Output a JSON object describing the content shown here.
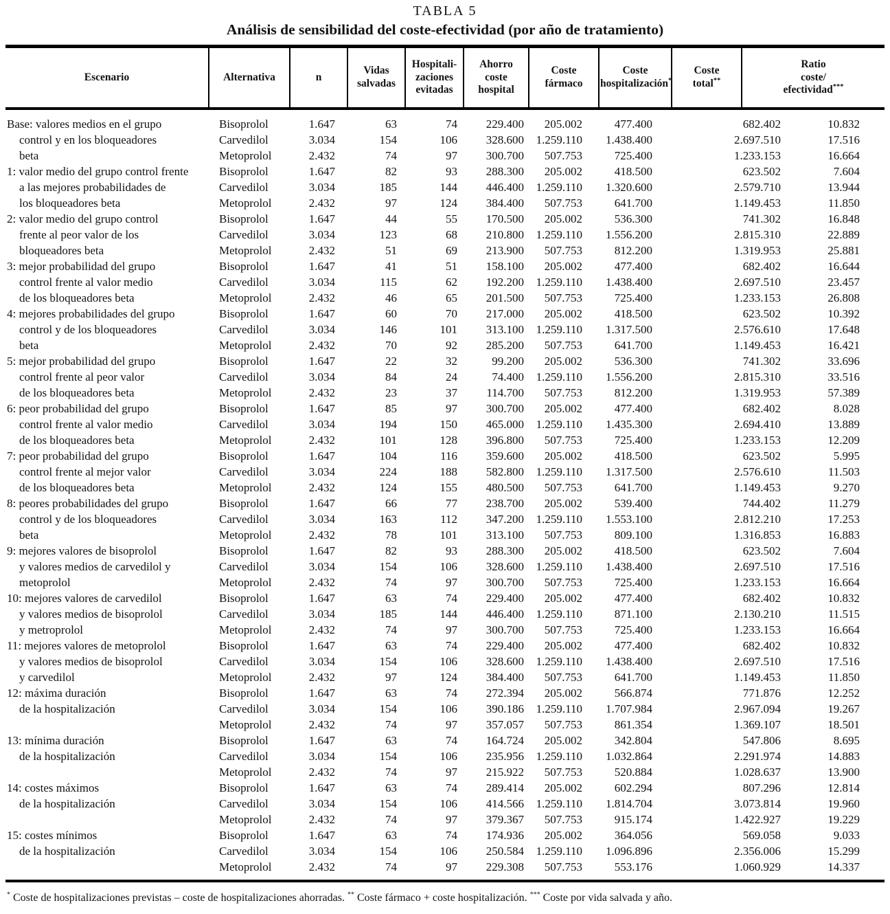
{
  "caption": "TABLA 5",
  "title": "Análisis de sensibilidad del coste-efectividad (por año de tratamiento)",
  "columns": [
    {
      "id": "escenario",
      "label": "Escenario",
      "sup": ""
    },
    {
      "id": "alternativa",
      "label": "Alternativa",
      "sup": ""
    },
    {
      "id": "n",
      "label": "n",
      "sup": ""
    },
    {
      "id": "vidas",
      "label": "Vidas\nsalvadas",
      "sup": ""
    },
    {
      "id": "hospitalizaciones",
      "label": "Hospitali-\nzaciones\nevitadas",
      "sup": ""
    },
    {
      "id": "ahorro",
      "label": "Ahorro\ncoste\nhospital",
      "sup": ""
    },
    {
      "id": "farmaco",
      "label": "Coste\nfármaco",
      "sup": ""
    },
    {
      "id": "coste_hospitalizacion",
      "label": "Coste\nhospitalización",
      "sup": "*"
    },
    {
      "id": "coste_total",
      "label": "Coste\ntotal",
      "sup": "**"
    },
    {
      "id": "ratio",
      "label": "Ratio\ncoste/\nefectividad",
      "sup": "***"
    }
  ],
  "scenarios": [
    {
      "lines": [
        "Base: valores medios en el grupo",
        "control y en los bloqueadores",
        "beta"
      ],
      "rows": [
        {
          "alternativa": "Bisoprolol",
          "n": "1.647",
          "vidas": "63",
          "hospitalizaciones": "74",
          "ahorro": "229.400",
          "farmaco": "205.002",
          "coste_hospitalizacion": "477.400",
          "coste_total": "682.402",
          "ratio": "10.832"
        },
        {
          "alternativa": "Carvedilol",
          "n": "3.034",
          "vidas": "154",
          "hospitalizaciones": "106",
          "ahorro": "328.600",
          "farmaco": "1.259.110",
          "coste_hospitalizacion": "1.438.400",
          "coste_total": "2.697.510",
          "ratio": "17.516"
        },
        {
          "alternativa": "Metoprolol",
          "n": "2.432",
          "vidas": "74",
          "hospitalizaciones": "97",
          "ahorro": "300.700",
          "farmaco": "507.753",
          "coste_hospitalizacion": "725.400",
          "coste_total": "1.233.153",
          "ratio": "16.664"
        }
      ]
    },
    {
      "lines": [
        "1: valor medio del grupo control frente",
        "a las mejores probabilidades de",
        "los bloqueadores beta"
      ],
      "rows": [
        {
          "alternativa": "Bisoprolol",
          "n": "1.647",
          "vidas": "82",
          "hospitalizaciones": "93",
          "ahorro": "288.300",
          "farmaco": "205.002",
          "coste_hospitalizacion": "418.500",
          "coste_total": "623.502",
          "ratio": "7.604"
        },
        {
          "alternativa": "Carvedilol",
          "n": "3.034",
          "vidas": "185",
          "hospitalizaciones": "144",
          "ahorro": "446.400",
          "farmaco": "1.259.110",
          "coste_hospitalizacion": "1.320.600",
          "coste_total": "2.579.710",
          "ratio": "13.944"
        },
        {
          "alternativa": "Metoprolol",
          "n": "2.432",
          "vidas": "97",
          "hospitalizaciones": "124",
          "ahorro": "384.400",
          "farmaco": "507.753",
          "coste_hospitalizacion": "641.700",
          "coste_total": "1.149.453",
          "ratio": "11.850"
        }
      ]
    },
    {
      "lines": [
        "2: valor medio del grupo control",
        "frente  al peor valor de los",
        "bloqueadores beta"
      ],
      "rows": [
        {
          "alternativa": "Bisoprolol",
          "n": "1.647",
          "vidas": "44",
          "hospitalizaciones": "55",
          "ahorro": "170.500",
          "farmaco": "205.002",
          "coste_hospitalizacion": "536.300",
          "coste_total": "741.302",
          "ratio": "16.848"
        },
        {
          "alternativa": "Carvedilol",
          "n": "3.034",
          "vidas": "123",
          "hospitalizaciones": "68",
          "ahorro": "210.800",
          "farmaco": "1.259.110",
          "coste_hospitalizacion": "1.556.200",
          "coste_total": "2.815.310",
          "ratio": "22.889"
        },
        {
          "alternativa": "Metoprolol",
          "n": "2.432",
          "vidas": "51",
          "hospitalizaciones": "69",
          "ahorro": "213.900",
          "farmaco": "507.753",
          "coste_hospitalizacion": "812.200",
          "coste_total": "1.319.953",
          "ratio": "25.881"
        }
      ]
    },
    {
      "lines": [
        "3: mejor probabilidad del grupo",
        "control frente al valor medio",
        "de los bloqueadores beta"
      ],
      "rows": [
        {
          "alternativa": "Bisoprolol",
          "n": "1.647",
          "vidas": "41",
          "hospitalizaciones": "51",
          "ahorro": "158.100",
          "farmaco": "205.002",
          "coste_hospitalizacion": "477.400",
          "coste_total": "682.402",
          "ratio": "16.644"
        },
        {
          "alternativa": "Carvedilol",
          "n": "3.034",
          "vidas": "115",
          "hospitalizaciones": "62",
          "ahorro": "192.200",
          "farmaco": "1.259.110",
          "coste_hospitalizacion": "1.438.400",
          "coste_total": "2.697.510",
          "ratio": "23.457"
        },
        {
          "alternativa": "Metoprolol",
          "n": "2.432",
          "vidas": "46",
          "hospitalizaciones": "65",
          "ahorro": "201.500",
          "farmaco": "507.753",
          "coste_hospitalizacion": "725.400",
          "coste_total": "1.233.153",
          "ratio": "26.808"
        }
      ]
    },
    {
      "lines": [
        "4: mejores probabilidades del grupo",
        "control y de los bloqueadores",
        "beta"
      ],
      "rows": [
        {
          "alternativa": "Bisoprolol",
          "n": "1.647",
          "vidas": "60",
          "hospitalizaciones": "70",
          "ahorro": "217.000",
          "farmaco": "205.002",
          "coste_hospitalizacion": "418.500",
          "coste_total": "623.502",
          "ratio": "10.392"
        },
        {
          "alternativa": "Carvedilol",
          "n": "3.034",
          "vidas": "146",
          "hospitalizaciones": "101",
          "ahorro": "313.100",
          "farmaco": "1.259.110",
          "coste_hospitalizacion": "1.317.500",
          "coste_total": "2.576.610",
          "ratio": "17.648"
        },
        {
          "alternativa": "Metoprolol",
          "n": "2.432",
          "vidas": "70",
          "hospitalizaciones": "92",
          "ahorro": "285.200",
          "farmaco": "507.753",
          "coste_hospitalizacion": "641.700",
          "coste_total": "1.149.453",
          "ratio": "16.421"
        }
      ]
    },
    {
      "lines": [
        "5: mejor probabilidad del grupo",
        "control frente al peor valor",
        "de los bloqueadores beta"
      ],
      "rows": [
        {
          "alternativa": "Bisoprolol",
          "n": "1.647",
          "vidas": "22",
          "hospitalizaciones": "32",
          "ahorro": "99.200",
          "farmaco": "205.002",
          "coste_hospitalizacion": "536.300",
          "coste_total": "741.302",
          "ratio": "33.696"
        },
        {
          "alternativa": "Carvedilol",
          "n": "3.034",
          "vidas": "84",
          "hospitalizaciones": "24",
          "ahorro": "74.400",
          "farmaco": "1.259.110",
          "coste_hospitalizacion": "1.556.200",
          "coste_total": "2.815.310",
          "ratio": "33.516"
        },
        {
          "alternativa": "Metoprolol",
          "n": "2.432",
          "vidas": "23",
          "hospitalizaciones": "37",
          "ahorro": "114.700",
          "farmaco": "507.753",
          "coste_hospitalizacion": "812.200",
          "coste_total": "1.319.953",
          "ratio": "57.389"
        }
      ]
    },
    {
      "lines": [
        "6: peor probabilidad del grupo",
        "control frente al valor medio",
        "de los bloqueadores beta"
      ],
      "rows": [
        {
          "alternativa": "Bisoprolol",
          "n": "1.647",
          "vidas": "85",
          "hospitalizaciones": "97",
          "ahorro": "300.700",
          "farmaco": "205.002",
          "coste_hospitalizacion": "477.400",
          "coste_total": "682.402",
          "ratio": "8.028"
        },
        {
          "alternativa": "Carvedilol",
          "n": "3.034",
          "vidas": "194",
          "hospitalizaciones": "150",
          "ahorro": "465.000",
          "farmaco": "1.259.110",
          "coste_hospitalizacion": "1.435.300",
          "coste_total": "2.694.410",
          "ratio": "13.889"
        },
        {
          "alternativa": "Metoprolol",
          "n": "2.432",
          "vidas": "101",
          "hospitalizaciones": "128",
          "ahorro": "396.800",
          "farmaco": "507.753",
          "coste_hospitalizacion": "725.400",
          "coste_total": "1.233.153",
          "ratio": "12.209"
        }
      ]
    },
    {
      "lines": [
        "7: peor probabilidad del grupo",
        "control frente al mejor valor",
        "de los bloqueadores beta"
      ],
      "rows": [
        {
          "alternativa": "Bisoprolol",
          "n": "1.647",
          "vidas": "104",
          "hospitalizaciones": "116",
          "ahorro": "359.600",
          "farmaco": "205.002",
          "coste_hospitalizacion": "418.500",
          "coste_total": "623.502",
          "ratio": "5.995"
        },
        {
          "alternativa": "Carvedilol",
          "n": "3.034",
          "vidas": "224",
          "hospitalizaciones": "188",
          "ahorro": "582.800",
          "farmaco": "1.259.110",
          "coste_hospitalizacion": "1.317.500",
          "coste_total": "2.576.610",
          "ratio": "11.503"
        },
        {
          "alternativa": "Metoprolol",
          "n": "2.432",
          "vidas": "124",
          "hospitalizaciones": "155",
          "ahorro": "480.500",
          "farmaco": "507.753",
          "coste_hospitalizacion": "641.700",
          "coste_total": "1.149.453",
          "ratio": "9.270"
        }
      ]
    },
    {
      "lines": [
        "8: peores probabilidades del grupo",
        "control y de los bloqueadores",
        "beta"
      ],
      "rows": [
        {
          "alternativa": "Bisoprolol",
          "n": "1.647",
          "vidas": "66",
          "hospitalizaciones": "77",
          "ahorro": "238.700",
          "farmaco": "205.002",
          "coste_hospitalizacion": "539.400",
          "coste_total": "744.402",
          "ratio": "11.279"
        },
        {
          "alternativa": "Carvedilol",
          "n": "3.034",
          "vidas": "163",
          "hospitalizaciones": "112",
          "ahorro": "347.200",
          "farmaco": "1.259.110",
          "coste_hospitalizacion": "1.553.100",
          "coste_total": "2.812.210",
          "ratio": "17.253"
        },
        {
          "alternativa": "Metoprolol",
          "n": "2.432",
          "vidas": "78",
          "hospitalizaciones": "101",
          "ahorro": "313.100",
          "farmaco": "507.753",
          "coste_hospitalizacion": "809.100",
          "coste_total": "1.316.853",
          "ratio": "16.883"
        }
      ]
    },
    {
      "lines": [
        "9: mejores valores de bisoprolol",
        "y valores medios de carvedilol y",
        "metoprolol"
      ],
      "rows": [
        {
          "alternativa": "Bisoprolol",
          "n": "1.647",
          "vidas": "82",
          "hospitalizaciones": "93",
          "ahorro": "288.300",
          "farmaco": "205.002",
          "coste_hospitalizacion": "418.500",
          "coste_total": "623.502",
          "ratio": "7.604"
        },
        {
          "alternativa": "Carvedilol",
          "n": "3.034",
          "vidas": "154",
          "hospitalizaciones": "106",
          "ahorro": "328.600",
          "farmaco": "1.259.110",
          "coste_hospitalizacion": "1.438.400",
          "coste_total": "2.697.510",
          "ratio": "17.516"
        },
        {
          "alternativa": "Metoprolol",
          "n": "2.432",
          "vidas": "74",
          "hospitalizaciones": "97",
          "ahorro": "300.700",
          "farmaco": "507.753",
          "coste_hospitalizacion": "725.400",
          "coste_total": "1.233.153",
          "ratio": "16.664"
        }
      ]
    },
    {
      "lines": [
        "10: mejores valores de carvedilol",
        "y valores medios de bisoprolol",
        "y metroprolol"
      ],
      "rows": [
        {
          "alternativa": "Bisoprolol",
          "n": "1.647",
          "vidas": "63",
          "hospitalizaciones": "74",
          "ahorro": "229.400",
          "farmaco": "205.002",
          "coste_hospitalizacion": "477.400",
          "coste_total": "682.402",
          "ratio": "10.832"
        },
        {
          "alternativa": "Carvedilol",
          "n": "3.034",
          "vidas": "185",
          "hospitalizaciones": "144",
          "ahorro": "446.400",
          "farmaco": "1.259.110",
          "coste_hospitalizacion": "871.100",
          "coste_total": "2.130.210",
          "ratio": "11.515"
        },
        {
          "alternativa": "Metoprolol",
          "n": "2.432",
          "vidas": "74",
          "hospitalizaciones": "97",
          "ahorro": "300.700",
          "farmaco": "507.753",
          "coste_hospitalizacion": "725.400",
          "coste_total": "1.233.153",
          "ratio": "16.664"
        }
      ]
    },
    {
      "lines": [
        "11: mejores valores de metoprolol",
        "y valores medios de bisoprolol",
        "y carvedilol"
      ],
      "rows": [
        {
          "alternativa": "Bisoprolol",
          "n": "1.647",
          "vidas": "63",
          "hospitalizaciones": "74",
          "ahorro": "229.400",
          "farmaco": "205.002",
          "coste_hospitalizacion": "477.400",
          "coste_total": "682.402",
          "ratio": "10.832"
        },
        {
          "alternativa": "Carvedilol",
          "n": "3.034",
          "vidas": "154",
          "hospitalizaciones": "106",
          "ahorro": "328.600",
          "farmaco": "1.259.110",
          "coste_hospitalizacion": "1.438.400",
          "coste_total": "2.697.510",
          "ratio": "17.516"
        },
        {
          "alternativa": "Metoprolol",
          "n": "2.432",
          "vidas": "97",
          "hospitalizaciones": "124",
          "ahorro": "384.400",
          "farmaco": "507.753",
          "coste_hospitalizacion": "641.700",
          "coste_total": "1.149.453",
          "ratio": "11.850"
        }
      ]
    },
    {
      "lines": [
        "12: máxima duración",
        "de la hospitalización",
        ""
      ],
      "rows": [
        {
          "alternativa": "Bisoprolol",
          "n": "1.647",
          "vidas": "63",
          "hospitalizaciones": "74",
          "ahorro": "272.394",
          "farmaco": "205.002",
          "coste_hospitalizacion": "566.874",
          "coste_total": "771.876",
          "ratio": "12.252"
        },
        {
          "alternativa": "Carvedilol",
          "n": "3.034",
          "vidas": "154",
          "hospitalizaciones": "106",
          "ahorro": "390.186",
          "farmaco": "1.259.110",
          "coste_hospitalizacion": "1.707.984",
          "coste_total": "2.967.094",
          "ratio": "19.267"
        },
        {
          "alternativa": "Metoprolol",
          "n": "2.432",
          "vidas": "74",
          "hospitalizaciones": "97",
          "ahorro": "357.057",
          "farmaco": "507.753",
          "coste_hospitalizacion": "861.354",
          "coste_total": "1.369.107",
          "ratio": "18.501"
        }
      ]
    },
    {
      "lines": [
        "13: mínima duración",
        "de la hospitalización",
        ""
      ],
      "rows": [
        {
          "alternativa": "Bisoprolol",
          "n": "1.647",
          "vidas": "63",
          "hospitalizaciones": "74",
          "ahorro": "164.724",
          "farmaco": "205.002",
          "coste_hospitalizacion": "342.804",
          "coste_total": "547.806",
          "ratio": "8.695"
        },
        {
          "alternativa": "Carvedilol",
          "n": "3.034",
          "vidas": "154",
          "hospitalizaciones": "106",
          "ahorro": "235.956",
          "farmaco": "1.259.110",
          "coste_hospitalizacion": "1.032.864",
          "coste_total": "2.291.974",
          "ratio": "14.883"
        },
        {
          "alternativa": "Metoprolol",
          "n": "2.432",
          "vidas": "74",
          "hospitalizaciones": "97",
          "ahorro": "215.922",
          "farmaco": "507.753",
          "coste_hospitalizacion": "520.884",
          "coste_total": "1.028.637",
          "ratio": "13.900"
        }
      ]
    },
    {
      "lines": [
        "14: costes máximos",
        "de la hospitalización",
        ""
      ],
      "rows": [
        {
          "alternativa": "Bisoprolol",
          "n": "1.647",
          "vidas": "63",
          "hospitalizaciones": "74",
          "ahorro": "289.414",
          "farmaco": "205.002",
          "coste_hospitalizacion": "602.294",
          "coste_total": "807.296",
          "ratio": "12.814"
        },
        {
          "alternativa": "Carvedilol",
          "n": "3.034",
          "vidas": "154",
          "hospitalizaciones": "106",
          "ahorro": "414.566",
          "farmaco": "1.259.110",
          "coste_hospitalizacion": "1.814.704",
          "coste_total": "3.073.814",
          "ratio": "19.960"
        },
        {
          "alternativa": "Metoprolol",
          "n": "2.432",
          "vidas": "74",
          "hospitalizaciones": "97",
          "ahorro": "379.367",
          "farmaco": "507.753",
          "coste_hospitalizacion": "915.174",
          "coste_total": "1.422.927",
          "ratio": "19.229"
        }
      ]
    },
    {
      "lines": [
        "15: costes mínimos",
        "de la hospitalización",
        ""
      ],
      "rows": [
        {
          "alternativa": "Bisoprolol",
          "n": "1.647",
          "vidas": "63",
          "hospitalizaciones": "74",
          "ahorro": "174.936",
          "farmaco": "205.002",
          "coste_hospitalizacion": "364.056",
          "coste_total": "569.058",
          "ratio": "9.033"
        },
        {
          "alternativa": "Carvedilol",
          "n": "3.034",
          "vidas": "154",
          "hospitalizaciones": "106",
          "ahorro": "250.584",
          "farmaco": "1.259.110",
          "coste_hospitalizacion": "1.096.896",
          "coste_total": "2.356.006",
          "ratio": "15.299"
        },
        {
          "alternativa": "Metoprolol",
          "n": "2.432",
          "vidas": "74",
          "hospitalizaciones": "97",
          "ahorro": "229.308",
          "farmaco": "507.753",
          "coste_hospitalizacion": "553.176",
          "coste_total": "1.060.929",
          "ratio": "14.337"
        }
      ]
    }
  ],
  "footnote": {
    "sup1": "*",
    "text1": " Coste de hospitalizaciones previstas – coste de hospitalizaciones ahorradas. ",
    "sup2": "**",
    "text2": " Coste fármaco + coste hospitalización. ",
    "sup3": "***",
    "text3": " Coste por vida salvada y año."
  }
}
